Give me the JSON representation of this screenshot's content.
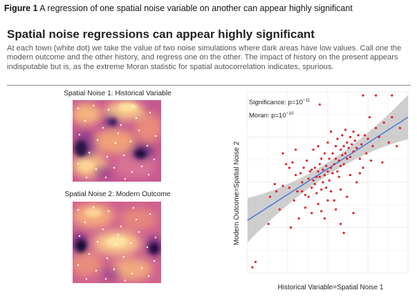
{
  "figure_caption": {
    "label": "Figure 1",
    "text": "A regression of one spatial noise variable on another can appear highly significant"
  },
  "headline": "Spatial noise regressions can appear highly significant",
  "description": "At each town (white dot) we take the value of two noise simulations where dark areas have low values. Call one the modern outcome and the other history, and regress one on the other. The impact of history on the present appears indisputable but is, as the extreme Moran statistic for spatial autocorrelation indicates, spurious.",
  "maps": [
    {
      "title": "Spatial Noise 1: Historical Variable"
    },
    {
      "title": "Spatial Noise 2: Modern Outcome"
    }
  ],
  "colors": {
    "points": "#e8161b",
    "fit_line": "#3a6fe0",
    "band": "#bdbdbd",
    "panel": "#ffffff",
    "grid": "#ececec"
  },
  "chart_data": {
    "type": "scatter",
    "title": "",
    "xlabel": "Historical Variable=Spatial Noise 1",
    "ylabel": "Modern Outcome=Spatial Noise 2",
    "xlim": [
      0,
      1
    ],
    "ylim": [
      0,
      1
    ],
    "grid": true,
    "annotations": {
      "significance": {
        "prefix": "Significance: p=10",
        "exponent": "−11"
      },
      "moran": {
        "prefix": "Moran: p=10",
        "exponent": "−10"
      }
    },
    "fit": {
      "intercept": 0.29,
      "slope": 0.57
    },
    "points": [
      [
        0.03,
        0.03
      ],
      [
        0.05,
        0.06
      ],
      [
        0.13,
        0.27
      ],
      [
        0.14,
        0.42
      ],
      [
        0.17,
        0.49
      ],
      [
        0.18,
        0.45
      ],
      [
        0.2,
        0.35
      ],
      [
        0.22,
        0.48
      ],
      [
        0.24,
        0.6
      ],
      [
        0.26,
        0.58
      ],
      [
        0.26,
        0.47
      ],
      [
        0.28,
        0.61
      ],
      [
        0.29,
        0.4
      ],
      [
        0.3,
        0.54
      ],
      [
        0.31,
        0.45
      ],
      [
        0.33,
        0.55
      ],
      [
        0.34,
        0.5
      ],
      [
        0.34,
        0.45
      ],
      [
        0.35,
        0.58
      ],
      [
        0.36,
        0.43
      ],
      [
        0.37,
        0.62
      ],
      [
        0.38,
        0.52
      ],
      [
        0.38,
        0.42
      ],
      [
        0.39,
        0.56
      ],
      [
        0.4,
        0.57
      ],
      [
        0.4,
        0.47
      ],
      [
        0.41,
        0.51
      ],
      [
        0.41,
        0.68
      ],
      [
        0.42,
        0.58
      ],
      [
        0.42,
        0.49
      ],
      [
        0.43,
        0.53
      ],
      [
        0.43,
        0.44
      ],
      [
        0.44,
        0.56
      ],
      [
        0.44,
        0.38
      ],
      [
        0.45,
        0.6
      ],
      [
        0.45,
        0.53
      ],
      [
        0.46,
        0.63
      ],
      [
        0.46,
        0.46
      ],
      [
        0.47,
        0.57
      ],
      [
        0.47,
        0.5
      ],
      [
        0.48,
        0.66
      ],
      [
        0.48,
        0.54
      ],
      [
        0.49,
        0.59
      ],
      [
        0.49,
        0.47
      ],
      [
        0.5,
        0.72
      ],
      [
        0.5,
        0.56
      ],
      [
        0.51,
        0.63
      ],
      [
        0.51,
        0.51
      ],
      [
        0.52,
        0.45
      ],
      [
        0.52,
        0.58
      ],
      [
        0.53,
        0.66
      ],
      [
        0.53,
        0.55
      ],
      [
        0.54,
        0.6
      ],
      [
        0.54,
        0.4
      ],
      [
        0.55,
        0.7
      ],
      [
        0.55,
        0.63
      ],
      [
        0.56,
        0.56
      ],
      [
        0.56,
        0.74
      ],
      [
        0.57,
        0.62
      ],
      [
        0.57,
        0.53
      ],
      [
        0.58,
        0.68
      ],
      [
        0.58,
        0.59
      ],
      [
        0.59,
        0.65
      ],
      [
        0.59,
        0.76
      ],
      [
        0.6,
        0.6
      ],
      [
        0.6,
        0.7
      ],
      [
        0.61,
        0.66
      ],
      [
        0.61,
        0.79
      ],
      [
        0.62,
        0.72
      ],
      [
        0.62,
        0.63
      ],
      [
        0.63,
        0.69
      ],
      [
        0.64,
        0.75
      ],
      [
        0.64,
        0.64
      ],
      [
        0.65,
        0.71
      ],
      [
        0.66,
        0.67
      ],
      [
        0.66,
        0.78
      ],
      [
        0.67,
        0.73
      ],
      [
        0.68,
        0.69
      ],
      [
        0.69,
        0.76
      ],
      [
        0.7,
        0.63
      ],
      [
        0.71,
        0.71
      ],
      [
        0.72,
        0.58
      ],
      [
        0.73,
        0.76
      ],
      [
        0.74,
        0.66
      ],
      [
        0.75,
        0.74
      ],
      [
        0.78,
        0.7
      ],
      [
        0.8,
        0.8
      ],
      [
        0.82,
        0.75
      ],
      [
        0.85,
        0.83
      ],
      [
        0.88,
        0.72
      ],
      [
        0.9,
        0.86
      ],
      [
        0.93,
        0.7
      ],
      [
        0.95,
        0.8
      ],
      [
        0.45,
        0.93
      ],
      [
        0.72,
        0.98
      ],
      [
        0.8,
        0.98
      ],
      [
        0.9,
        0.98
      ],
      [
        0.32,
        0.3
      ],
      [
        0.58,
        0.27
      ],
      [
        0.6,
        0.22
      ],
      [
        0.66,
        0.33
      ],
      [
        0.68,
        0.5
      ],
      [
        0.55,
        0.35
      ],
      [
        0.48,
        0.3
      ],
      [
        0.4,
        0.33
      ],
      [
        0.36,
        0.36
      ],
      [
        0.27,
        0.25
      ],
      [
        0.62,
        0.42
      ],
      [
        0.7,
        0.55
      ],
      [
        0.77,
        0.62
      ],
      [
        0.84,
        0.61
      ],
      [
        0.76,
        0.86
      ],
      [
        0.52,
        0.78
      ],
      [
        0.44,
        0.7
      ],
      [
        0.3,
        0.68
      ],
      [
        0.22,
        0.66
      ],
      [
        0.64,
        0.54
      ],
      [
        0.58,
        0.46
      ],
      [
        0.5,
        0.4
      ],
      [
        0.46,
        0.34
      ]
    ]
  }
}
